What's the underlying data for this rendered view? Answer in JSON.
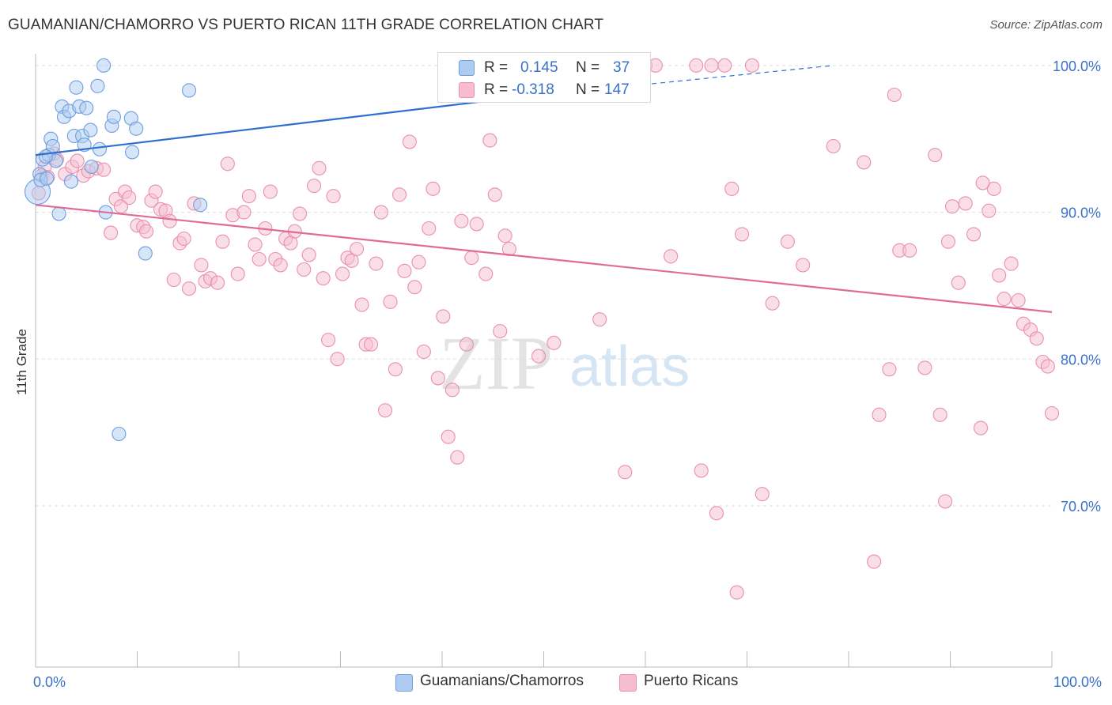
{
  "title": "GUAMANIAN/CHAMORRO VS PUERTO RICAN 11TH GRADE CORRELATION CHART",
  "source": "Source: ZipAtlas.com",
  "watermark": {
    "zip": "ZIP",
    "atlas": "atlas"
  },
  "legend": {
    "rows": [
      {
        "r_label": "R =",
        "r_value": "0.145",
        "n_label": "N =",
        "n_value": "37"
      },
      {
        "r_label": "R =",
        "r_value": "-0.318",
        "n_label": "N =",
        "n_value": "147"
      }
    ]
  },
  "bottom_legend": [
    "Guamanians/Chamorros",
    "Puerto Ricans"
  ],
  "colors": {
    "blue_fill": "#aecbf0",
    "blue_stroke": "#6d9ee0",
    "blue_line": "#2e6fd0",
    "pink_fill": "#f6bdd0",
    "pink_stroke": "#ea8fae",
    "pink_line": "#e06b98",
    "value_text": "#3a70c8",
    "grid": "#dddddd"
  },
  "chart_data": {
    "type": "scatter",
    "title": "GUAMANIAN/CHAMORRO VS PUERTO RICAN 11TH GRADE CORRELATION CHART",
    "xlabel": "",
    "ylabel": "11th Grade",
    "x_tick_labels": [
      "0.0%",
      "100.0%"
    ],
    "y_tick_labels": [
      "100.0%",
      "90.0%",
      "80.0%",
      "70.0%"
    ],
    "y_ticks": [
      100,
      90,
      80,
      70
    ],
    "xlim": [
      0,
      100
    ],
    "ylim": [
      60.2,
      100.8
    ],
    "grid": true,
    "series": [
      {
        "name": "Guamanians/Chamorros",
        "color": "#aecbf0",
        "trend": {
          "x": [
            0,
            47
          ],
          "y": [
            93.9,
            97.8
          ],
          "dashed_to": {
            "x": 78.5,
            "y": 100.0
          }
        },
        "points": [
          [
            0.2,
            91.4
          ],
          [
            0.4,
            92.6
          ],
          [
            0.7,
            93.6
          ],
          [
            1.3,
            93.9
          ],
          [
            1.5,
            95.0
          ],
          [
            1.7,
            94.5
          ],
          [
            2.0,
            93.5
          ],
          [
            2.3,
            89.9
          ],
          [
            2.6,
            97.2
          ],
          [
            2.8,
            96.5
          ],
          [
            3.3,
            96.9
          ],
          [
            3.5,
            92.1
          ],
          [
            3.8,
            95.2
          ],
          [
            4.0,
            98.5
          ],
          [
            4.3,
            97.2
          ],
          [
            4.6,
            95.2
          ],
          [
            4.8,
            94.6
          ],
          [
            5.0,
            97.1
          ],
          [
            5.4,
            95.6
          ],
          [
            5.5,
            93.1
          ],
          [
            6.1,
            98.6
          ],
          [
            6.3,
            94.3
          ],
          [
            6.7,
            100.0
          ],
          [
            6.9,
            90.0
          ],
          [
            7.5,
            95.9
          ],
          [
            7.7,
            96.5
          ],
          [
            8.2,
            74.9
          ],
          [
            9.4,
            96.4
          ],
          [
            9.5,
            94.1
          ],
          [
            9.9,
            95.7
          ],
          [
            10.8,
            87.2
          ],
          [
            15.1,
            98.3
          ],
          [
            16.2,
            90.5
          ],
          [
            47.0,
            98.9
          ],
          [
            0.5,
            92.2
          ],
          [
            1.0,
            93.8
          ],
          [
            1.1,
            92.3
          ]
        ]
      },
      {
        "name": "Puerto Ricans",
        "color": "#f6bdd0",
        "trend": {
          "x": [
            0,
            100
          ],
          "y": [
            90.5,
            83.2
          ]
        },
        "points": [
          [
            0.3,
            91.3
          ],
          [
            0.6,
            92.5
          ],
          [
            0.9,
            93.1
          ],
          [
            1.2,
            92.4
          ],
          [
            1.8,
            94.0
          ],
          [
            2.1,
            93.6
          ],
          [
            2.9,
            92.6
          ],
          [
            3.6,
            93.1
          ],
          [
            4.1,
            93.5
          ],
          [
            4.7,
            92.5
          ],
          [
            5.2,
            92.8
          ],
          [
            6.0,
            93.0
          ],
          [
            6.7,
            92.9
          ],
          [
            7.4,
            88.6
          ],
          [
            7.9,
            90.9
          ],
          [
            8.4,
            90.4
          ],
          [
            8.8,
            91.4
          ],
          [
            9.2,
            91.0
          ],
          [
            10.0,
            89.1
          ],
          [
            10.6,
            89.0
          ],
          [
            10.9,
            88.7
          ],
          [
            11.4,
            90.8
          ],
          [
            11.8,
            91.4
          ],
          [
            12.3,
            90.2
          ],
          [
            12.8,
            90.1
          ],
          [
            13.2,
            89.4
          ],
          [
            13.6,
            85.4
          ],
          [
            14.2,
            87.9
          ],
          [
            14.6,
            88.2
          ],
          [
            15.1,
            84.8
          ],
          [
            15.6,
            90.6
          ],
          [
            16.3,
            86.4
          ],
          [
            16.7,
            85.3
          ],
          [
            17.2,
            85.5
          ],
          [
            17.9,
            85.2
          ],
          [
            18.4,
            88.0
          ],
          [
            18.9,
            93.3
          ],
          [
            19.4,
            89.8
          ],
          [
            19.9,
            85.8
          ],
          [
            20.5,
            90.0
          ],
          [
            21.0,
            91.1
          ],
          [
            21.6,
            87.8
          ],
          [
            22.0,
            86.8
          ],
          [
            22.6,
            88.9
          ],
          [
            23.1,
            91.4
          ],
          [
            23.6,
            86.8
          ],
          [
            24.1,
            86.4
          ],
          [
            24.6,
            88.2
          ],
          [
            25.1,
            87.9
          ],
          [
            25.5,
            88.7
          ],
          [
            26.0,
            89.9
          ],
          [
            26.4,
            86.1
          ],
          [
            26.9,
            87.1
          ],
          [
            27.4,
            91.8
          ],
          [
            27.9,
            93.0
          ],
          [
            28.3,
            85.5
          ],
          [
            28.8,
            81.3
          ],
          [
            29.3,
            91.1
          ],
          [
            29.7,
            80.0
          ],
          [
            30.2,
            85.8
          ],
          [
            30.7,
            86.9
          ],
          [
            31.1,
            86.7
          ],
          [
            31.6,
            87.5
          ],
          [
            32.1,
            83.7
          ],
          [
            32.5,
            81.0
          ],
          [
            33.0,
            81.0
          ],
          [
            33.5,
            86.5
          ],
          [
            34.0,
            90.0
          ],
          [
            34.4,
            76.5
          ],
          [
            34.9,
            83.9
          ],
          [
            35.4,
            79.3
          ],
          [
            35.8,
            91.2
          ],
          [
            36.3,
            86.0
          ],
          [
            36.8,
            94.8
          ],
          [
            37.3,
            84.9
          ],
          [
            37.7,
            86.6
          ],
          [
            38.2,
            80.5
          ],
          [
            38.7,
            88.9
          ],
          [
            39.1,
            91.6
          ],
          [
            39.6,
            78.7
          ],
          [
            40.1,
            82.9
          ],
          [
            40.6,
            74.7
          ],
          [
            41.0,
            77.9
          ],
          [
            41.5,
            73.3
          ],
          [
            41.9,
            89.4
          ],
          [
            42.4,
            81.0
          ],
          [
            42.9,
            86.9
          ],
          [
            43.4,
            89.2
          ],
          [
            43.8,
            100.0
          ],
          [
            44.3,
            85.8
          ],
          [
            44.7,
            94.9
          ],
          [
            45.2,
            91.2
          ],
          [
            45.7,
            81.9
          ],
          [
            46.2,
            88.4
          ],
          [
            46.6,
            87.5
          ],
          [
            47.1,
            100.0
          ],
          [
            49.5,
            80.2
          ],
          [
            51.0,
            81.1
          ],
          [
            55.5,
            82.7
          ],
          [
            58.0,
            72.3
          ],
          [
            60.0,
            100.0
          ],
          [
            61.0,
            100.0
          ],
          [
            62.5,
            87.0
          ],
          [
            65.0,
            100.0
          ],
          [
            65.5,
            72.4
          ],
          [
            66.5,
            100.0
          ],
          [
            67.0,
            69.5
          ],
          [
            67.8,
            100.0
          ],
          [
            68.5,
            91.6
          ],
          [
            69.0,
            64.1
          ],
          [
            69.5,
            88.5
          ],
          [
            70.5,
            100.0
          ],
          [
            71.5,
            70.8
          ],
          [
            72.5,
            83.8
          ],
          [
            74.0,
            88.0
          ],
          [
            75.5,
            86.4
          ],
          [
            78.5,
            94.5
          ],
          [
            81.5,
            93.4
          ],
          [
            82.5,
            66.2
          ],
          [
            83.0,
            76.2
          ],
          [
            84.0,
            79.3
          ],
          [
            84.5,
            98.0
          ],
          [
            85.0,
            87.4
          ],
          [
            86.0,
            87.4
          ],
          [
            87.5,
            79.4
          ],
          [
            88.5,
            93.9
          ],
          [
            89.0,
            76.2
          ],
          [
            89.5,
            70.3
          ],
          [
            89.8,
            88.0
          ],
          [
            90.2,
            90.4
          ],
          [
            90.8,
            85.2
          ],
          [
            91.5,
            90.6
          ],
          [
            92.3,
            88.5
          ],
          [
            93.0,
            75.3
          ],
          [
            93.8,
            90.1
          ],
          [
            94.3,
            91.6
          ],
          [
            94.8,
            85.7
          ],
          [
            95.3,
            84.1
          ],
          [
            96.0,
            86.5
          ],
          [
            96.7,
            84.0
          ],
          [
            97.2,
            82.4
          ],
          [
            97.9,
            82.0
          ],
          [
            98.5,
            81.4
          ],
          [
            99.1,
            79.8
          ],
          [
            99.6,
            79.5
          ],
          [
            100.0,
            76.3
          ],
          [
            93.2,
            92.0
          ]
        ]
      }
    ]
  }
}
